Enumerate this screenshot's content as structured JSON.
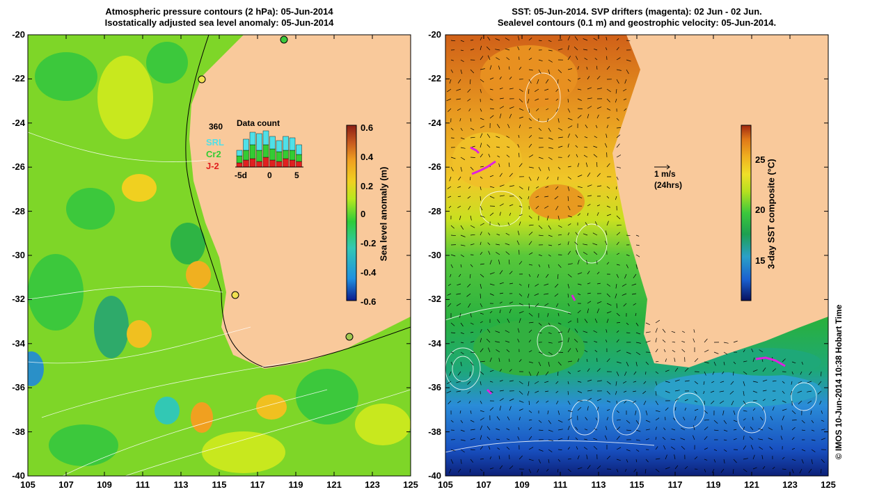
{
  "left_panel": {
    "title_line1": "Atmospheric pressure contours (2 hPa): 05-Jun-2014",
    "title_line2": "Isostatically adjusted sea level anomaly: 05-Jun-2014",
    "colorbar": {
      "label": "Sea level anomaly (m)",
      "ticks": [
        "0.6",
        "0.4",
        "0.2",
        "0",
        "-0.2",
        "-0.4",
        "-0.6"
      ]
    },
    "inset": {
      "title": "Data count",
      "ymax_label": "360",
      "legend": [
        {
          "name": "SRL",
          "color": "#4fe0e8"
        },
        {
          "name": "Cr2",
          "color": "#33cc33"
        },
        {
          "name": "J-2",
          "color": "#e02020"
        }
      ],
      "xaxis": [
        "-5d",
        "0",
        "5"
      ]
    }
  },
  "right_panel": {
    "title_line1": "SST: 05-Jun-2014. SVP drifters (magenta): 02 Jun - 02 Jun.",
    "title_line2": "Sealevel contours (0.1 m) and geostrophic velocity: 05-Jun-2014.",
    "colorbar": {
      "label": "3-day SST composite (°C)",
      "ticks": [
        "25",
        "20",
        "15"
      ]
    },
    "velocity_scale": {
      "label": "1 m/s",
      "sublabel": "(24hrs)"
    }
  },
  "axes": {
    "x_ticks": [
      "105",
      "107",
      "109",
      "111",
      "113",
      "115",
      "117",
      "119",
      "121",
      "123",
      "125"
    ],
    "y_ticks": [
      "-20",
      "-22",
      "-24",
      "-26",
      "-28",
      "-30",
      "-32",
      "-34",
      "-36",
      "-38",
      "-40"
    ]
  },
  "credit": "© IMOS 10-Jun-2014 10:38 Hobart Time",
  "colors": {
    "land": "#f9c99b",
    "sla_ramp": [
      "#0b1a8c",
      "#1e90e0",
      "#32c8b4",
      "#2ecc3a",
      "#b8e81e",
      "#f0d020",
      "#f0a020",
      "#c85a1e",
      "#8c1e14"
    ],
    "sst_ramp": [
      "#08105e",
      "#1a60d0",
      "#2aa0c8",
      "#1ea050",
      "#3cc83c",
      "#b4e020",
      "#f0e028",
      "#f0b020",
      "#e07818",
      "#a02810"
    ]
  }
}
